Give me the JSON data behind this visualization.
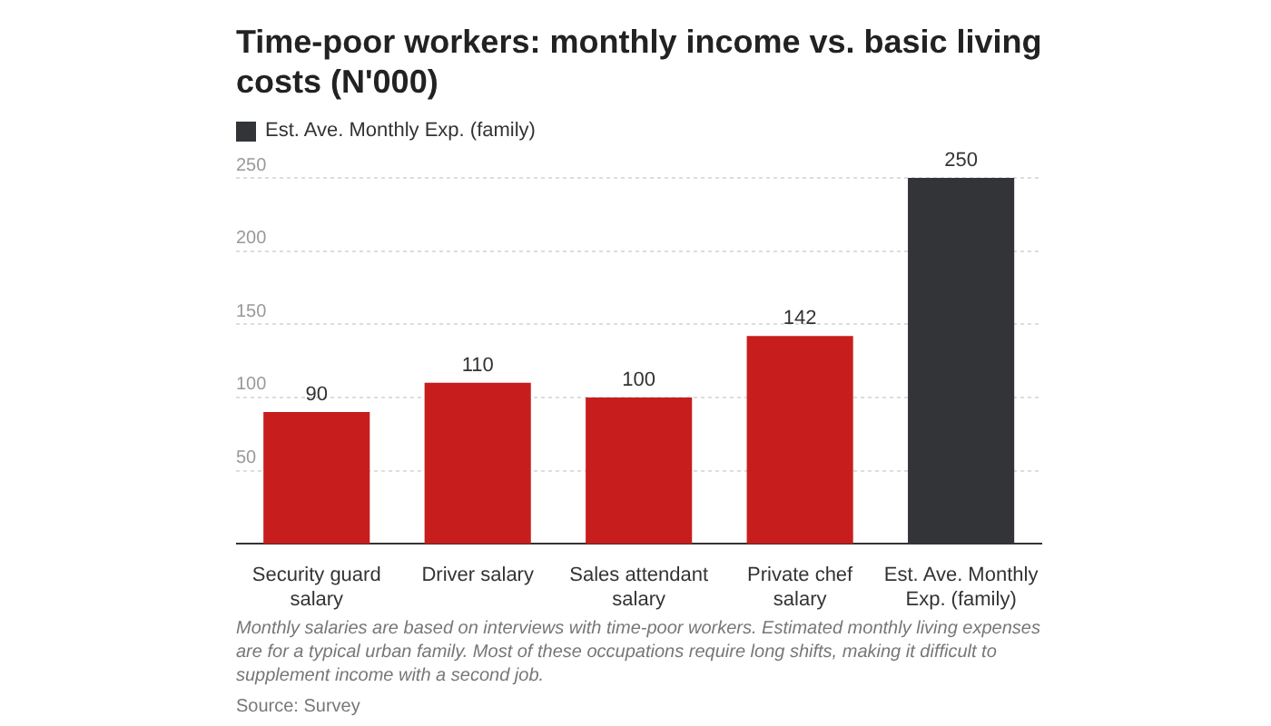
{
  "chart_data": {
    "type": "bar",
    "title": "Time-poor workers: monthly income vs. basic living costs (N'000)",
    "categories": [
      "Security guard salary",
      "Driver salary",
      "Sales attendant salary",
      "Private chef salary",
      "Est. Ave. Monthly Exp. (family)"
    ],
    "series": [
      {
        "name": "Est. Ave. Monthly Exp. (family)",
        "color": "#333438",
        "values": [
          null,
          null,
          null,
          null,
          250
        ]
      },
      {
        "color": "#c71e1d",
        "values": [
          90,
          110,
          100,
          142,
          null
        ]
      }
    ],
    "ylim": [
      0,
      250
    ],
    "yticks": [
      50,
      100,
      150,
      200,
      250
    ],
    "grid": "y",
    "legend": "top left",
    "data_labels": true,
    "annotations": [
      "Monthly salaries are based on interviews with time-poor workers. Estimated monthly living expenses are for a typical urban family. Most of these occupations require long shifts, making it difficult to supplement income with a second job.",
      "Source: Survey"
    ]
  }
}
